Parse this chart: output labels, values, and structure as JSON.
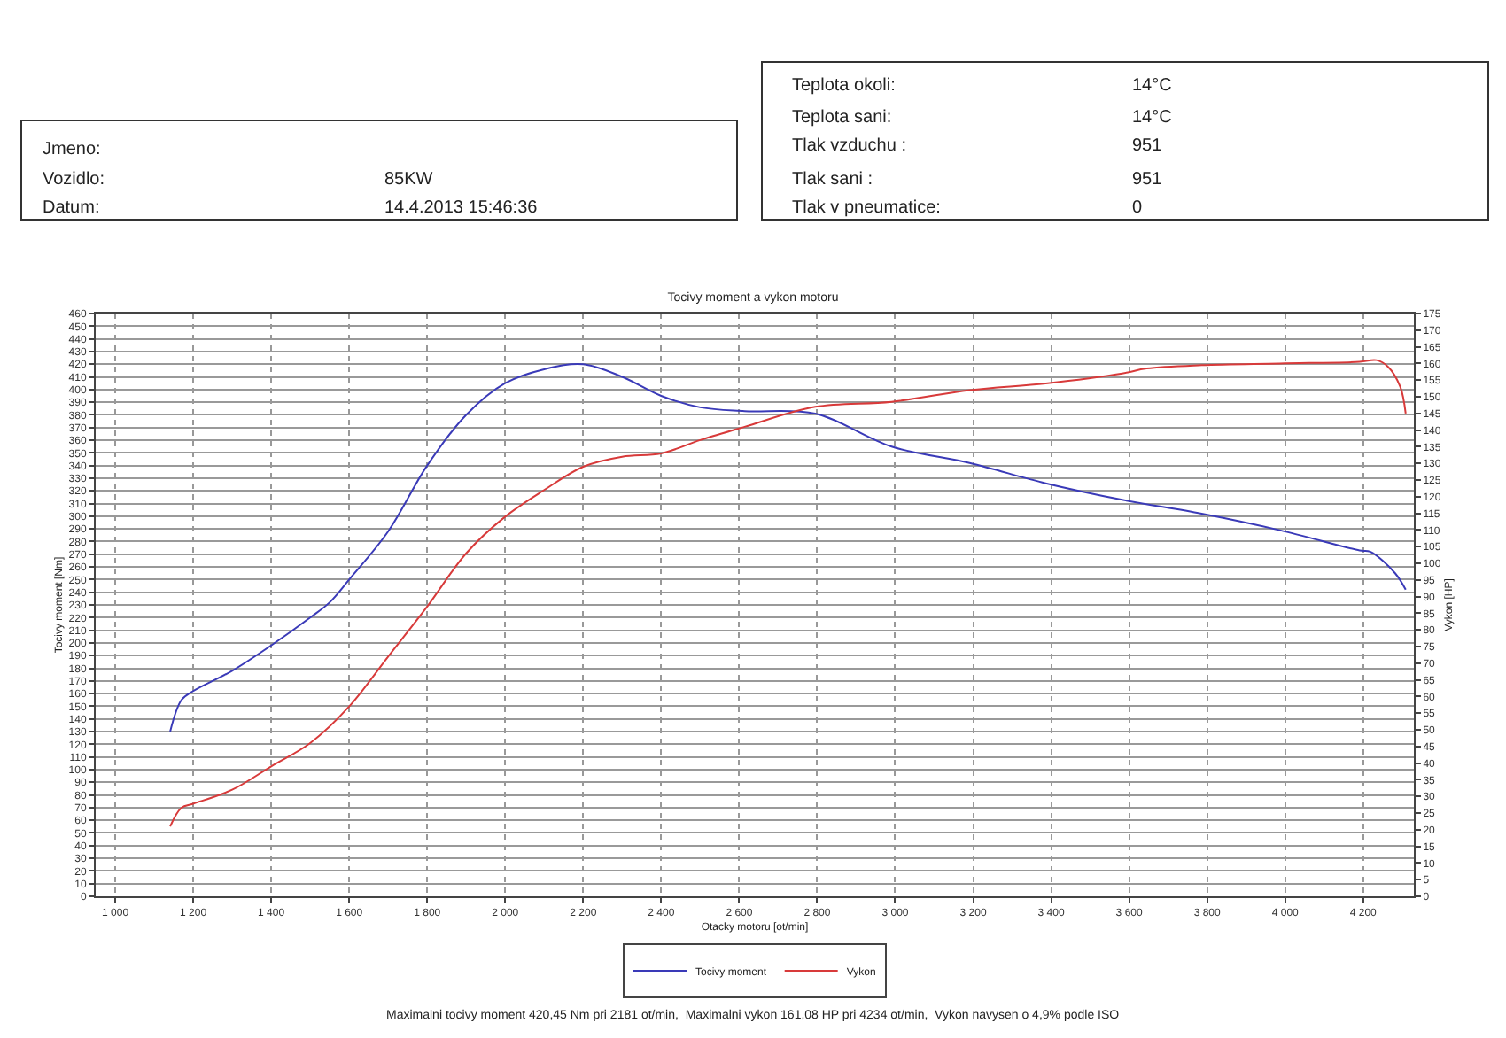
{
  "chart_data": {
    "type": "line",
    "title": "Tocivy moment a vykon motoru",
    "xlabel": "Otacky motoru [ot/min]",
    "ylabel": "Tocivy moment [Nm]",
    "y2label": "Vykon [HP]",
    "annotations": [
      "Jmeno:",
      "Vozidlo:",
      "85KW",
      "Datum:",
      "14.4.2013 15:46:36",
      "Teplota okoli:",
      "14°C",
      "Teplota sani:",
      "14°C",
      "Tlak vzduchu :",
      "951",
      "Tlak sani :",
      "951",
      "Tlak v pneumatice:",
      "0",
      "Maximalni tocivy moment 420,45 Nm pri 2181 ot/min,  Maximalni vykon 161,08 HP pri 4234 ot/min,  Vykon navysen o 4,9% podle ISO"
    ],
    "series": [
      {
        "name": "Tocivy moment",
        "color": "#3a3ab8",
        "x": [
          1141,
          1170,
          1200,
          1300,
          1400,
          1500,
          1550,
          1600,
          1700,
          1800,
          1900,
          2000,
          2100,
          2200,
          2300,
          2400,
          2500,
          2614,
          2795,
          2991,
          3191,
          3386,
          3582,
          3786,
          3986,
          4191,
          4218,
          4282,
          4309
        ],
        "values": [
          130,
          155,
          162,
          178,
          198,
          220,
          232,
          250,
          288,
          340,
          380,
          405,
          416,
          420,
          410,
          395,
          386,
          383,
          381,
          355,
          342,
          326,
          313,
          302,
          289,
          273,
          272,
          255,
          242
        ]
      },
      {
        "name": "Vykon",
        "color": "#d83a3a",
        "axis": "y2",
        "x": [
          1141,
          1170,
          1200,
          1300,
          1400,
          1500,
          1600,
          1700,
          1800,
          1900,
          2000,
          2100,
          2200,
          2300,
          2400,
          2500,
          2614,
          2795,
          2991,
          3191,
          3386,
          3582,
          3645,
          3786,
          3986,
          4191,
          4234,
          4264,
          4295,
          4309
        ],
        "values": [
          21,
          26.6,
          27.8,
          32,
          39,
          46,
          57,
          72,
          87,
          103,
          114,
          122,
          129,
          132,
          133,
          137,
          141,
          147,
          148.5,
          152,
          154,
          157,
          158.5,
          159.5,
          160,
          160.5,
          161,
          159,
          153,
          145
        ]
      }
    ],
    "xlim": [
      950,
      4330
    ],
    "xticks": [
      {
        "value": 1000,
        "label": "1 000"
      },
      {
        "value": 1200,
        "label": "1 200"
      },
      {
        "value": 1400,
        "label": "1 400"
      },
      {
        "value": 1600,
        "label": "1 600"
      },
      {
        "value": 1800,
        "label": "1 800"
      },
      {
        "value": 2000,
        "label": "2 000"
      },
      {
        "value": 2200,
        "label": "2 200"
      },
      {
        "value": 2400,
        "label": "2 400"
      },
      {
        "value": 2600,
        "label": "2 600"
      },
      {
        "value": 2800,
        "label": "2 800"
      },
      {
        "value": 3000,
        "label": "3 000"
      },
      {
        "value": 3200,
        "label": "3 200"
      },
      {
        "value": 3400,
        "label": "3 400"
      },
      {
        "value": 3600,
        "label": "3 600"
      },
      {
        "value": 3800,
        "label": "3 800"
      },
      {
        "value": 4000,
        "label": "4 000"
      },
      {
        "value": 4200,
        "label": "4 200"
      }
    ],
    "ylim": [
      0,
      460
    ],
    "yticks": [
      0,
      10,
      20,
      30,
      40,
      50,
      60,
      70,
      80,
      90,
      100,
      110,
      120,
      130,
      140,
      150,
      160,
      170,
      180,
      190,
      200,
      210,
      220,
      230,
      240,
      250,
      260,
      270,
      280,
      290,
      300,
      310,
      320,
      330,
      340,
      350,
      360,
      370,
      380,
      390,
      400,
      410,
      420,
      430,
      440,
      450,
      460
    ],
    "y2lim": [
      0,
      175
    ],
    "y2ticks": [
      0,
      5,
      10,
      15,
      20,
      25,
      30,
      35,
      40,
      45,
      50,
      55,
      60,
      65,
      70,
      75,
      80,
      85,
      90,
      95,
      100,
      105,
      110,
      115,
      120,
      125,
      130,
      135,
      140,
      145,
      150,
      155,
      160,
      165,
      170,
      175
    ],
    "grid": true,
    "legend": "bottom",
    "marker": "none",
    "line_style": "solid"
  }
}
